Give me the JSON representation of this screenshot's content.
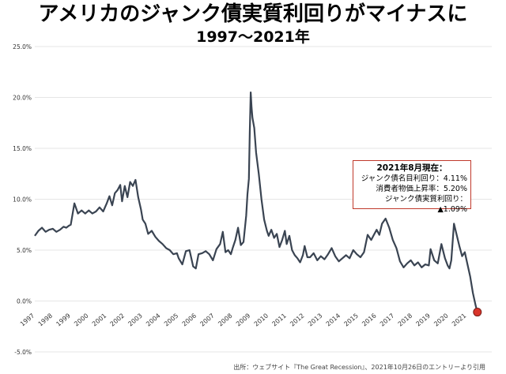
{
  "title": "アメリカのジャンク債実質利回りがマイナスに",
  "subtitle": "1997～2021年",
  "note": {
    "heading": "2021年8月現在：",
    "line1": "ジャンク債名目利回り：4.11%",
    "line2": "消費者物価上昇率：5.20%",
    "line3": "ジャンク債実質利回り：▲1.09%"
  },
  "source": "出所：ウェブサイト『The Great Recession』、2021年10月26日のエントリーより引用",
  "colors": {
    "line": "#3a4452",
    "marker": "#d9352b",
    "grid": "#e6e6e6",
    "note_border": "#c0392b"
  },
  "chart_data": {
    "type": "line",
    "title": "アメリカのジャンク債実質利回りがマイナスに",
    "subtitle": "1997～2021年",
    "ylim": [
      -5,
      25
    ],
    "yticks": [
      -5,
      0,
      5,
      10,
      15,
      20,
      25
    ],
    "ytick_labels": [
      "-5.0%",
      "0.0%",
      "5.0%",
      "10.0%",
      "15.0%",
      "20.0%",
      "25.0%"
    ],
    "xlim": [
      1997,
      2022.4
    ],
    "xticks": [
      1997,
      1998,
      1999,
      2000,
      2001,
      2002,
      2003,
      2004,
      2005,
      2006,
      2007,
      2008,
      2009,
      2010,
      2011,
      2012,
      2013,
      2014,
      2015,
      2016,
      2017,
      2018,
      2019,
      2020,
      2021
    ],
    "xtick_labels": [
      "1997",
      "1998",
      "1999",
      "2000",
      "2001",
      "2002",
      "2003",
      "2004",
      "2005",
      "2006",
      "2007",
      "2008",
      "2009",
      "2010",
      "2011",
      "2012",
      "2013",
      "2014",
      "2015",
      "2016",
      "2017",
      "2018",
      "2019",
      "2020",
      "2021"
    ],
    "grid": true,
    "series": [
      {
        "x": [
          1997.0,
          1997.2,
          1997.4,
          1997.6,
          1997.8,
          1998.0,
          1998.2,
          1998.4,
          1998.6,
          1998.75,
          1998.9,
          1999.0,
          1999.2,
          1999.4,
          1999.6,
          1999.8,
          2000.0,
          2000.2,
          2000.4,
          2000.6,
          2000.8,
          2001.0,
          2001.15,
          2001.3,
          2001.45,
          2001.6,
          2001.75,
          2001.85,
          2002.0,
          2002.15,
          2002.3,
          2002.45,
          2002.6,
          2002.75,
          2002.9,
          2003.0,
          2003.15,
          2003.3,
          2003.5,
          2003.7,
          2003.9,
          2004.1,
          2004.3,
          2004.5,
          2004.7,
          2004.9,
          2005.0,
          2005.2,
          2005.4,
          2005.6,
          2005.8,
          2005.95,
          2006.1,
          2006.3,
          2006.5,
          2006.7,
          2006.9,
          2007.1,
          2007.3,
          2007.45,
          2007.6,
          2007.75,
          2007.9,
          2008.0,
          2008.15,
          2008.3,
          2008.45,
          2008.6,
          2008.75,
          2008.82,
          2008.9,
          2008.95,
          2009.0,
          2009.05,
          2009.1,
          2009.2,
          2009.3,
          2009.45,
          2009.6,
          2009.75,
          2009.9,
          2010.0,
          2010.15,
          2010.3,
          2010.45,
          2010.6,
          2010.75,
          2010.9,
          2011.0,
          2011.15,
          2011.3,
          2011.45,
          2011.6,
          2011.75,
          2011.9,
          2012.0,
          2012.15,
          2012.3,
          2012.5,
          2012.7,
          2012.9,
          2013.1,
          2013.3,
          2013.5,
          2013.7,
          2013.9,
          2014.1,
          2014.3,
          2014.5,
          2014.7,
          2014.9,
          2015.1,
          2015.3,
          2015.5,
          2015.7,
          2015.85,
          2016.0,
          2016.15,
          2016.3,
          2016.5,
          2016.7,
          2016.9,
          2017.1,
          2017.3,
          2017.5,
          2017.7,
          2017.9,
          2018.1,
          2018.3,
          2018.5,
          2018.7,
          2018.9,
          2019.0,
          2019.2,
          2019.4,
          2019.6,
          2019.8,
          2019.95,
          2020.05,
          2020.15,
          2020.3,
          2020.45,
          2020.6,
          2020.75,
          2020.9,
          2021.05,
          2021.2,
          2021.35,
          2021.5,
          2021.6
        ],
        "y": [
          6.4,
          6.9,
          7.2,
          6.8,
          7.0,
          7.1,
          6.8,
          7.0,
          7.3,
          7.2,
          7.4,
          7.5,
          9.6,
          8.6,
          8.9,
          8.6,
          8.9,
          8.6,
          8.8,
          9.2,
          8.8,
          9.6,
          10.3,
          9.4,
          10.6,
          10.9,
          11.4,
          9.8,
          11.3,
          10.2,
          11.7,
          11.3,
          11.9,
          10.2,
          9.0,
          8.0,
          7.6,
          6.6,
          6.9,
          6.3,
          5.9,
          5.6,
          5.2,
          5.0,
          4.6,
          4.7,
          4.2,
          3.6,
          4.9,
          5.0,
          3.4,
          3.2,
          4.6,
          4.7,
          4.9,
          4.6,
          4.0,
          5.1,
          5.6,
          6.8,
          4.8,
          5.0,
          4.6,
          5.2,
          6.0,
          7.2,
          5.5,
          5.8,
          8.4,
          10.5,
          12.0,
          16.5,
          20.5,
          19.0,
          18.0,
          17.0,
          14.6,
          12.5,
          10.0,
          8.0,
          6.9,
          6.4,
          7.0,
          6.2,
          6.6,
          5.3,
          6.0,
          6.9,
          5.6,
          6.4,
          5.0,
          4.5,
          4.2,
          3.8,
          4.5,
          5.4,
          4.3,
          4.3,
          4.7,
          4.0,
          4.4,
          4.1,
          4.6,
          5.2,
          4.4,
          3.9,
          4.2,
          4.5,
          4.2,
          5.0,
          4.6,
          4.3,
          4.8,
          6.5,
          6.0,
          6.5,
          7.0,
          6.5,
          7.6,
          8.1,
          7.2,
          6.0,
          5.2,
          3.9,
          3.3,
          3.7,
          4.0,
          3.5,
          3.8,
          3.3,
          3.6,
          3.5,
          5.1,
          4.0,
          3.7,
          5.6,
          4.2,
          3.5,
          3.2,
          4.0,
          7.6,
          6.5,
          5.4,
          4.4,
          4.8,
          3.6,
          2.4,
          0.8,
          -0.4,
          -1.09
        ]
      }
    ],
    "annotations": [
      "2021年8月現在：",
      "ジャンク債名目利回り：4.11%",
      "消費者物価上昇率：5.20%",
      "ジャンク債実質利回り：▲1.09%"
    ]
  }
}
